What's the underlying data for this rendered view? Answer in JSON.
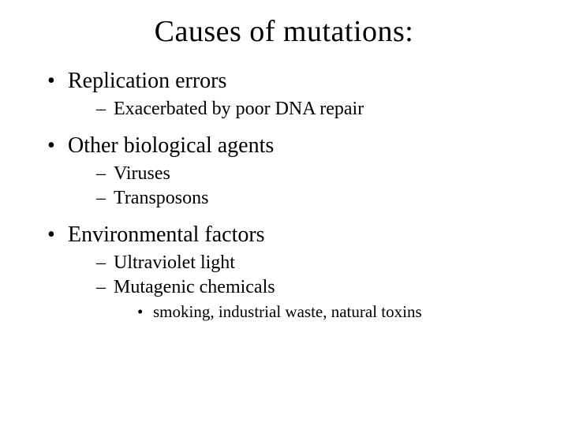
{
  "slide": {
    "title": "Causes of mutations:",
    "title_fontsize": 38,
    "background_color": "#ffffff",
    "text_color": "#000000",
    "font_family": "Garamond",
    "bullets": [
      {
        "text": "Replication errors",
        "children": [
          {
            "text": "Exacerbated by poor DNA repair"
          }
        ]
      },
      {
        "text": "Other biological agents",
        "children": [
          {
            "text": "Viruses"
          },
          {
            "text": "Transposons"
          }
        ]
      },
      {
        "text": "Environmental factors",
        "children": [
          {
            "text": "Ultraviolet light"
          },
          {
            "text": "Mutagenic chemicals",
            "children": [
              {
                "text": "smoking, industrial waste, natural toxins"
              }
            ]
          }
        ]
      }
    ],
    "level1_fontsize": 28,
    "level2_fontsize": 24,
    "level3_fontsize": 21,
    "level1_marker": "•",
    "level2_marker": "–",
    "level3_marker": "•"
  }
}
